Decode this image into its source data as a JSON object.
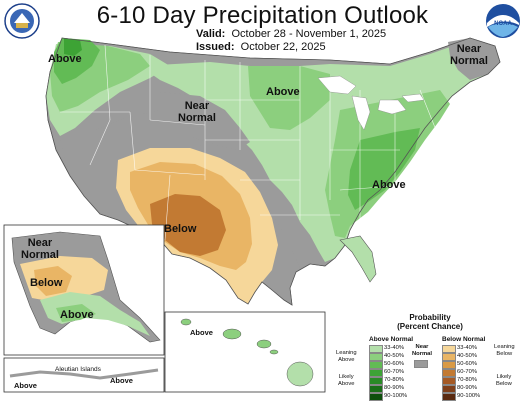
{
  "header": {
    "title": "6-10 Day Precipitation Outlook",
    "valid_label": "Valid:",
    "valid_dates": "October 28 - November 1, 2025",
    "issued_label": "Issued:",
    "issued_date": "October 22, 2025"
  },
  "logos": {
    "left": "DOC seal",
    "right": "NOAA"
  },
  "map_labels": {
    "above_northwest": "Above",
    "near_normal_northeast": [
      "Near",
      "Normal"
    ],
    "above_north_central": "Above",
    "near_normal_central": [
      "Near",
      "Normal"
    ],
    "above_east": "Above",
    "below_southwest": "Below",
    "alaska_near_normal": [
      "Near",
      "Normal"
    ],
    "alaska_below": "Below",
    "alaska_above": "Above",
    "hawaii_above": "Above",
    "aleutian_islands": "Aleutian Islands",
    "aleutian_above_left": "Above",
    "aleutian_above_right": "Above"
  },
  "legend": {
    "title": [
      "Probability",
      "(Percent Chance)"
    ],
    "above_normal_title": "Above Normal",
    "below_normal_title": "Below Normal",
    "near_normal_title": [
      "Near",
      "Normal"
    ],
    "leaning_above": [
      "Leaning",
      "Above"
    ],
    "likely_above": [
      "Likely",
      "Above"
    ],
    "leaning_below": [
      "Leaning",
      "Below"
    ],
    "likely_below": [
      "Likely",
      "Below"
    ],
    "ranges": [
      "33-40%",
      "40-50%",
      "50-60%",
      "60-70%",
      "70-80%",
      "80-90%",
      "90-100%"
    ],
    "above_colors": [
      "#b3dfaa",
      "#8ccf7e",
      "#62bb55",
      "#3da335",
      "#2a8a26",
      "#1a6e18",
      "#0d4f0c"
    ],
    "below_colors": [
      "#f6d79a",
      "#e9b565",
      "#d99a45",
      "#c27a33",
      "#a55a25",
      "#7f3f1a",
      "#5a2a10"
    ],
    "near_color": "#9b9b9b"
  }
}
